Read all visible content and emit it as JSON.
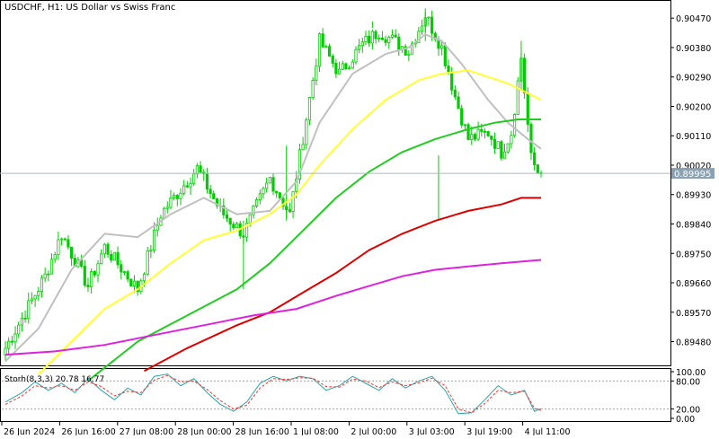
{
  "chart_title": "USDCHF, H1:  US Dollar vs Swiss Franc",
  "current_price_label": "0.89995",
  "stoch_label": "Storh(8,3,3) 20.78 16.77",
  "colors": {
    "background": "#ffffff",
    "candle": "#00cc00",
    "axis": "#000000",
    "grid_line": "#a9b7c0",
    "price_label_bg": "#8aa2b4",
    "ma_gray": "#c0c0c0",
    "ma_yellow": "#ffff33",
    "ma_green": "#22cc22",
    "ma_red": "#dd0000",
    "ma_magenta": "#dd22dd",
    "stoch_main": "#2aa5a5",
    "stoch_signal": "#ff3030"
  },
  "chart_data": {
    "type": "candlestick",
    "price_axis_ticks": [
      "0.90470",
      "0.90380",
      "0.90290",
      "0.90200",
      "0.90110",
      "0.90020",
      "0.89930",
      "0.89840",
      "0.89750",
      "0.89660",
      "0.89570",
      "0.89480"
    ],
    "price_axis_range": [
      0.8941,
      0.9052
    ],
    "current_price": 0.89995,
    "time_axis_labels": [
      "26 Jun 2024",
      "26 Jun 16:00",
      "27 Jun 08:00",
      "28 Jun 00:00",
      "28 Jun 16:00",
      "1 Jul 08:00",
      "2 Jul 00:00",
      "3 Jul 03:00",
      "3 Jul 19:00",
      "4 Jul 11:00"
    ],
    "waypoints": [
      {
        "bar": 0,
        "price": 0.8946
      },
      {
        "bar": 12,
        "price": 0.8968
      },
      {
        "bar": 17,
        "price": 0.8981
      },
      {
        "bar": 25,
        "price": 0.8965
      },
      {
        "bar": 30,
        "price": 0.8977
      },
      {
        "bar": 40,
        "price": 0.8964
      },
      {
        "bar": 47,
        "price": 0.8987
      },
      {
        "bar": 58,
        "price": 0.9001
      },
      {
        "bar": 65,
        "price": 0.8988
      },
      {
        "bar": 72,
        "price": 0.8981
      },
      {
        "bar": 80,
        "price": 0.8998
      },
      {
        "bar": 86,
        "price": 0.8987
      },
      {
        "bar": 95,
        "price": 0.904
      },
      {
        "bar": 101,
        "price": 0.903
      },
      {
        "bar": 108,
        "price": 0.9039
      },
      {
        "bar": 113,
        "price": 0.9043
      },
      {
        "bar": 122,
        "price": 0.9037
      },
      {
        "bar": 127,
        "price": 0.9048
      },
      {
        "bar": 132,
        "price": 0.9038
      },
      {
        "bar": 136,
        "price": 0.9023
      },
      {
        "bar": 140,
        "price": 0.901
      },
      {
        "bar": 146,
        "price": 0.9012
      },
      {
        "bar": 150,
        "price": 0.9006
      },
      {
        "bar": 153,
        "price": 0.9012
      },
      {
        "bar": 156,
        "price": 0.9035
      },
      {
        "bar": 159,
        "price": 0.9004
      },
      {
        "bar": 162,
        "price": 0.8998
      }
    ],
    "moving_averages": [
      {
        "color": "#c0c0c0",
        "points": [
          [
            0,
            0.8942
          ],
          [
            10,
            0.8952
          ],
          [
            20,
            0.897
          ],
          [
            30,
            0.8981
          ],
          [
            40,
            0.898
          ],
          [
            50,
            0.8987
          ],
          [
            60,
            0.8992
          ],
          [
            70,
            0.8987
          ],
          [
            80,
            0.8988
          ],
          [
            88,
            0.8997
          ],
          [
            95,
            0.9015
          ],
          [
            105,
            0.903
          ],
          [
            115,
            0.9036
          ],
          [
            122,
            0.9038
          ],
          [
            127,
            0.9042
          ],
          [
            132,
            0.904
          ],
          [
            138,
            0.9033
          ],
          [
            146,
            0.9022
          ],
          [
            152,
            0.9015
          ],
          [
            158,
            0.901
          ],
          [
            162,
            0.9007
          ]
        ]
      },
      {
        "color": "#ffff33",
        "points": [
          [
            10,
            0.8938
          ],
          [
            20,
            0.8948
          ],
          [
            30,
            0.8958
          ],
          [
            40,
            0.8964
          ],
          [
            50,
            0.8972
          ],
          [
            60,
            0.8979
          ],
          [
            70,
            0.8982
          ],
          [
            80,
            0.8987
          ],
          [
            88,
            0.8993
          ],
          [
            95,
            0.9002
          ],
          [
            105,
            0.9013
          ],
          [
            115,
            0.9022
          ],
          [
            125,
            0.9028
          ],
          [
            132,
            0.903
          ],
          [
            140,
            0.9031
          ],
          [
            146,
            0.9029
          ],
          [
            152,
            0.9027
          ],
          [
            158,
            0.9024
          ],
          [
            162,
            0.9022
          ]
        ]
      },
      {
        "color": "#22cc22",
        "points": [
          [
            25,
            0.8936
          ],
          [
            40,
            0.8948
          ],
          [
            55,
            0.8956
          ],
          [
            70,
            0.8964
          ],
          [
            80,
            0.8972
          ],
          [
            90,
            0.8982
          ],
          [
            100,
            0.8992
          ],
          [
            110,
            0.9
          ],
          [
            120,
            0.9006
          ],
          [
            130,
            0.901
          ],
          [
            140,
            0.9013
          ],
          [
            148,
            0.9015
          ],
          [
            155,
            0.9016
          ],
          [
            162,
            0.9016
          ]
        ]
      },
      {
        "color": "#dd0000",
        "points": [
          [
            42,
            0.8939
          ],
          [
            55,
            0.8946
          ],
          [
            70,
            0.8953
          ],
          [
            80,
            0.8957
          ],
          [
            90,
            0.8963
          ],
          [
            100,
            0.8969
          ],
          [
            110,
            0.8976
          ],
          [
            120,
            0.8981
          ],
          [
            130,
            0.8985
          ],
          [
            140,
            0.8988
          ],
          [
            150,
            0.899
          ],
          [
            156,
            0.8992
          ],
          [
            162,
            0.8992
          ]
        ]
      },
      {
        "color": "#dd22dd",
        "points": [
          [
            0,
            0.8944
          ],
          [
            15,
            0.8945
          ],
          [
            30,
            0.8947
          ],
          [
            45,
            0.895
          ],
          [
            60,
            0.8953
          ],
          [
            75,
            0.8956
          ],
          [
            88,
            0.8958
          ],
          [
            100,
            0.8962
          ],
          [
            110,
            0.8965
          ],
          [
            120,
            0.8968
          ],
          [
            130,
            0.897
          ],
          [
            140,
            0.8971
          ],
          [
            150,
            0.8972
          ],
          [
            162,
            0.8973
          ]
        ]
      }
    ],
    "stochastic": {
      "name": "Storh(8,3,3)",
      "main_value": 20.78,
      "signal_value": 16.77,
      "ticks": [
        "100.00",
        "80.00",
        "20.00",
        "0.00"
      ],
      "range": [
        0,
        100
      ],
      "levels": [
        80,
        20
      ],
      "main_points": [
        [
          0,
          35
        ],
        [
          5,
          55
        ],
        [
          9,
          78
        ],
        [
          13,
          60
        ],
        [
          17,
          75
        ],
        [
          21,
          55
        ],
        [
          25,
          85
        ],
        [
          29,
          60
        ],
        [
          33,
          40
        ],
        [
          37,
          65
        ],
        [
          41,
          50
        ],
        [
          45,
          90
        ],
        [
          49,
          95
        ],
        [
          53,
          70
        ],
        [
          57,
          85
        ],
        [
          61,
          55
        ],
        [
          65,
          30
        ],
        [
          69,
          15
        ],
        [
          73,
          35
        ],
        [
          77,
          75
        ],
        [
          81,
          90
        ],
        [
          85,
          80
        ],
        [
          89,
          90
        ],
        [
          93,
          85
        ],
        [
          97,
          60
        ],
        [
          101,
          70
        ],
        [
          105,
          90
        ],
        [
          109,
          75
        ],
        [
          113,
          60
        ],
        [
          117,
          85
        ],
        [
          121,
          65
        ],
        [
          125,
          80
        ],
        [
          129,
          90
        ],
        [
          133,
          60
        ],
        [
          137,
          10
        ],
        [
          141,
          12
        ],
        [
          145,
          40
        ],
        [
          149,
          70
        ],
        [
          153,
          50
        ],
        [
          157,
          60
        ],
        [
          160,
          15
        ],
        [
          162,
          20.78
        ]
      ],
      "signal_points": [
        [
          0,
          30
        ],
        [
          5,
          48
        ],
        [
          9,
          70
        ],
        [
          13,
          65
        ],
        [
          17,
          70
        ],
        [
          21,
          60
        ],
        [
          25,
          78
        ],
        [
          29,
          68
        ],
        [
          33,
          48
        ],
        [
          37,
          58
        ],
        [
          41,
          55
        ],
        [
          45,
          82
        ],
        [
          49,
          92
        ],
        [
          53,
          78
        ],
        [
          57,
          80
        ],
        [
          61,
          62
        ],
        [
          65,
          38
        ],
        [
          69,
          20
        ],
        [
          73,
          28
        ],
        [
          77,
          65
        ],
        [
          81,
          85
        ],
        [
          85,
          83
        ],
        [
          89,
          87
        ],
        [
          93,
          86
        ],
        [
          97,
          68
        ],
        [
          101,
          67
        ],
        [
          105,
          84
        ],
        [
          109,
          80
        ],
        [
          113,
          66
        ],
        [
          117,
          78
        ],
        [
          121,
          70
        ],
        [
          125,
          76
        ],
        [
          129,
          86
        ],
        [
          133,
          70
        ],
        [
          137,
          20
        ],
        [
          141,
          12
        ],
        [
          145,
          32
        ],
        [
          149,
          60
        ],
        [
          153,
          55
        ],
        [
          157,
          58
        ],
        [
          160,
          22
        ],
        [
          162,
          16.77
        ]
      ]
    }
  }
}
